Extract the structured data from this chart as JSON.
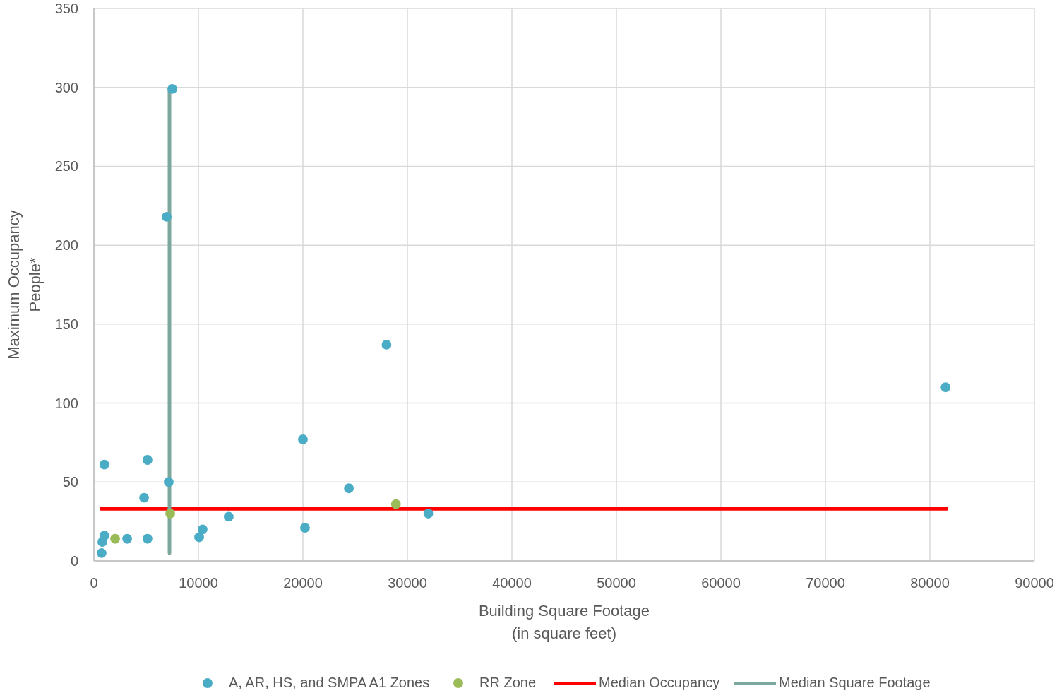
{
  "chart_data": {
    "type": "scatter",
    "xlabel": "Building Square Footage\n(in square feet)",
    "ylabel": "Maximum Occupancy\nPeople*",
    "xlim": [
      0,
      90000
    ],
    "xticks": [
      0,
      10000,
      20000,
      30000,
      40000,
      50000,
      60000,
      70000,
      80000,
      90000
    ],
    "ylim": [
      0,
      350
    ],
    "yticks": [
      0,
      50,
      100,
      150,
      200,
      250,
      300,
      350
    ],
    "grid": true,
    "legend": "bottom",
    "marker": "circle",
    "series": [
      {
        "name": "A, AR, HS, and SMPA A1 Zones",
        "color": "#4bacc6",
        "x": [
          740,
          810,
          1000,
          1000,
          3180,
          5130,
          4800,
          5130,
          6960,
          7160,
          7500,
          10070,
          10400,
          12900,
          20000,
          20200,
          24400,
          28000,
          32000,
          81500
        ],
        "values": [
          5,
          12,
          16,
          61,
          14,
          64,
          40,
          14,
          218,
          50,
          299,
          15,
          20,
          28,
          77,
          21,
          46,
          137,
          30,
          110
        ]
      },
      {
        "name": "RR Zone",
        "color": "#9bbb59",
        "x": [
          2030,
          7300,
          28900
        ],
        "values": [
          14,
          30,
          36
        ]
      },
      {
        "name": "Median Occupancy",
        "type": "line",
        "marker": "none",
        "color": "#ff0000",
        "x": [
          700,
          81600
        ],
        "values": [
          33,
          33
        ]
      },
      {
        "name": "Median Square Footage",
        "type": "line",
        "marker": "none",
        "color": "#7ba79d",
        "x": [
          7230,
          7230
        ],
        "values": [
          5,
          299
        ]
      }
    ]
  }
}
